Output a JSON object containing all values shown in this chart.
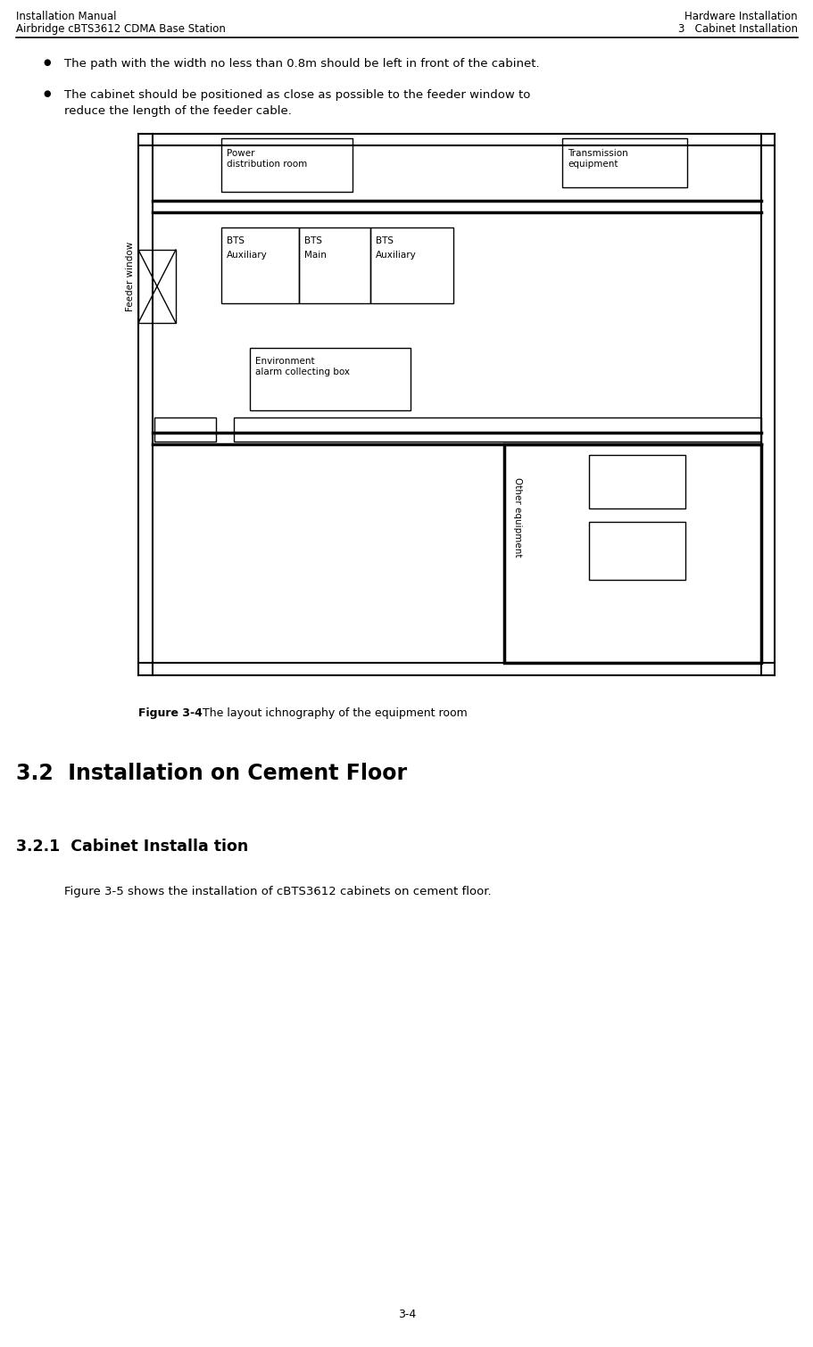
{
  "header_left_line1": "Installation Manual",
  "header_left_line2": "Airbridge cBTS3612 CDMA Base Station",
  "header_right_line1": "Hardware Installation",
  "header_right_line2": "3   Cabinet Installation",
  "bullet1": "The path with the width no less than 0.8m should be left in front of the cabinet.",
  "bullet2a": "The cabinet should be positioned as close as possible to the feeder window to",
  "bullet2b": "reduce the length of the feeder cable.",
  "figure_caption_bold": "Figure 3-4",
  "figure_caption_normal": " The layout ichnography of the equipment room",
  "section_32": "3.2  Installation on Cement Floor",
  "section_321": "3.2.1  Cabinet Installa tion",
  "body_text": "Figure 3-5 shows the installation of cBTS3612 cabinets on cement floor.",
  "page_number": "3-4",
  "bg_color": "#ffffff",
  "text_color": "#000000",
  "line_color": "#000000",
  "lw_wall": 1.5,
  "lw_thin": 1.0,
  "lw_thick": 2.5
}
